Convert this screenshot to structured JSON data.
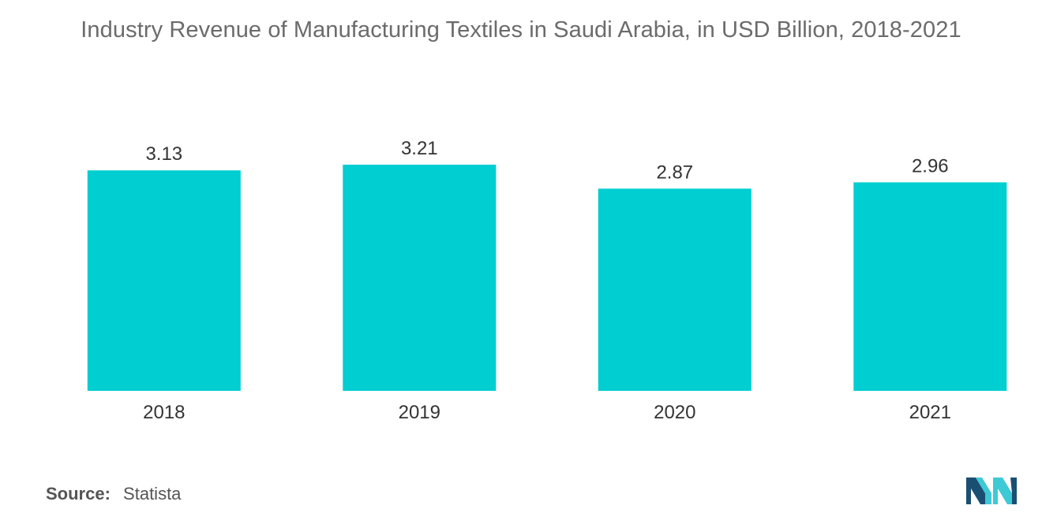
{
  "chart_data": {
    "type": "bar",
    "title": "Industry Revenue of Manufacturing Textiles in Saudi Arabia, in USD Billion, 2018-2021",
    "categories": [
      "2018",
      "2019",
      "2020",
      "2021"
    ],
    "values": [
      3.13,
      3.21,
      2.87,
      2.96
    ],
    "data_labels": [
      "3.13",
      "3.21",
      "2.87",
      "2.96"
    ],
    "xlabel": "",
    "ylabel": "",
    "ylim": [
      0,
      3.21
    ],
    "grid": false,
    "legend": "none",
    "bar_color": "#00CED1"
  },
  "source": {
    "label": "Source:",
    "value": "Statista"
  },
  "logo": {
    "icon": "mordor-intelligence-logo",
    "colors": [
      "#1b4f72",
      "#3ec9d6"
    ]
  }
}
